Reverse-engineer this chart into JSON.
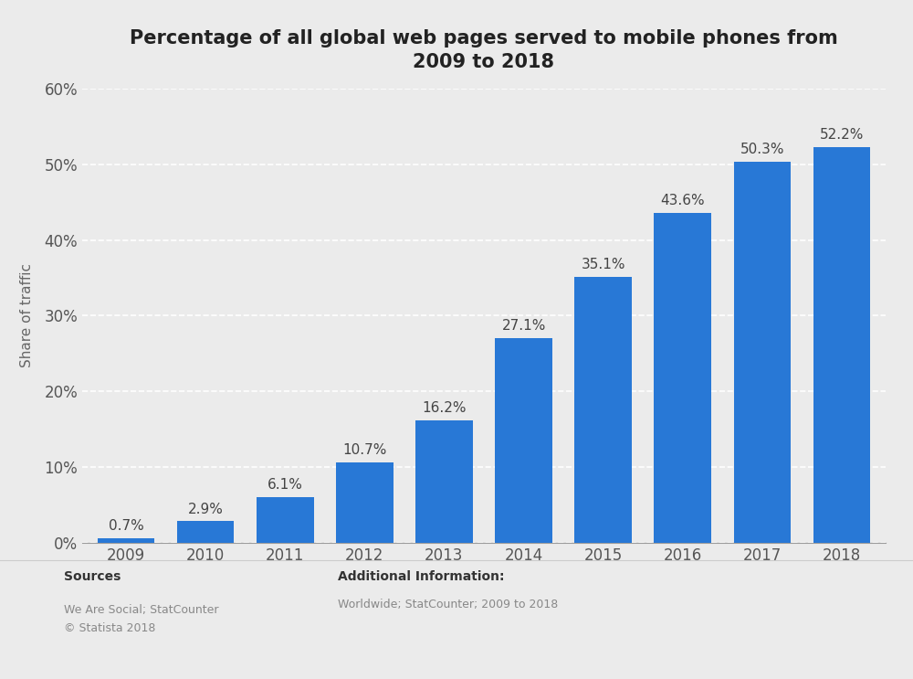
{
  "title": "Percentage of all global web pages served to mobile phones from\n2009 to 2018",
  "ylabel": "Share of traffic",
  "categories": [
    "2009",
    "2010",
    "2011",
    "2012",
    "2013",
    "2014",
    "2015",
    "2016",
    "2017",
    "2018"
  ],
  "values": [
    0.7,
    2.9,
    6.1,
    10.7,
    16.2,
    27.1,
    35.1,
    43.6,
    50.3,
    52.2
  ],
  "bar_color": "#2878d6",
  "background_color": "#ebebeb",
  "plot_background_color": "#ebebeb",
  "ylim": [
    0,
    60
  ],
  "yticks": [
    0,
    10,
    20,
    30,
    40,
    50,
    60
  ],
  "grid_color": "#ffffff",
  "label_fontsize": 12,
  "title_fontsize": 15,
  "ylabel_fontsize": 11,
  "bar_label_fontsize": 11,
  "footer_sources_title": "Sources",
  "footer_sources_body": "We Are Social; StatCounter\n© Statista 2018",
  "footer_info_title": "Additional Information:",
  "footer_info_body": "Worldwide; StatCounter; 2009 to 2018"
}
